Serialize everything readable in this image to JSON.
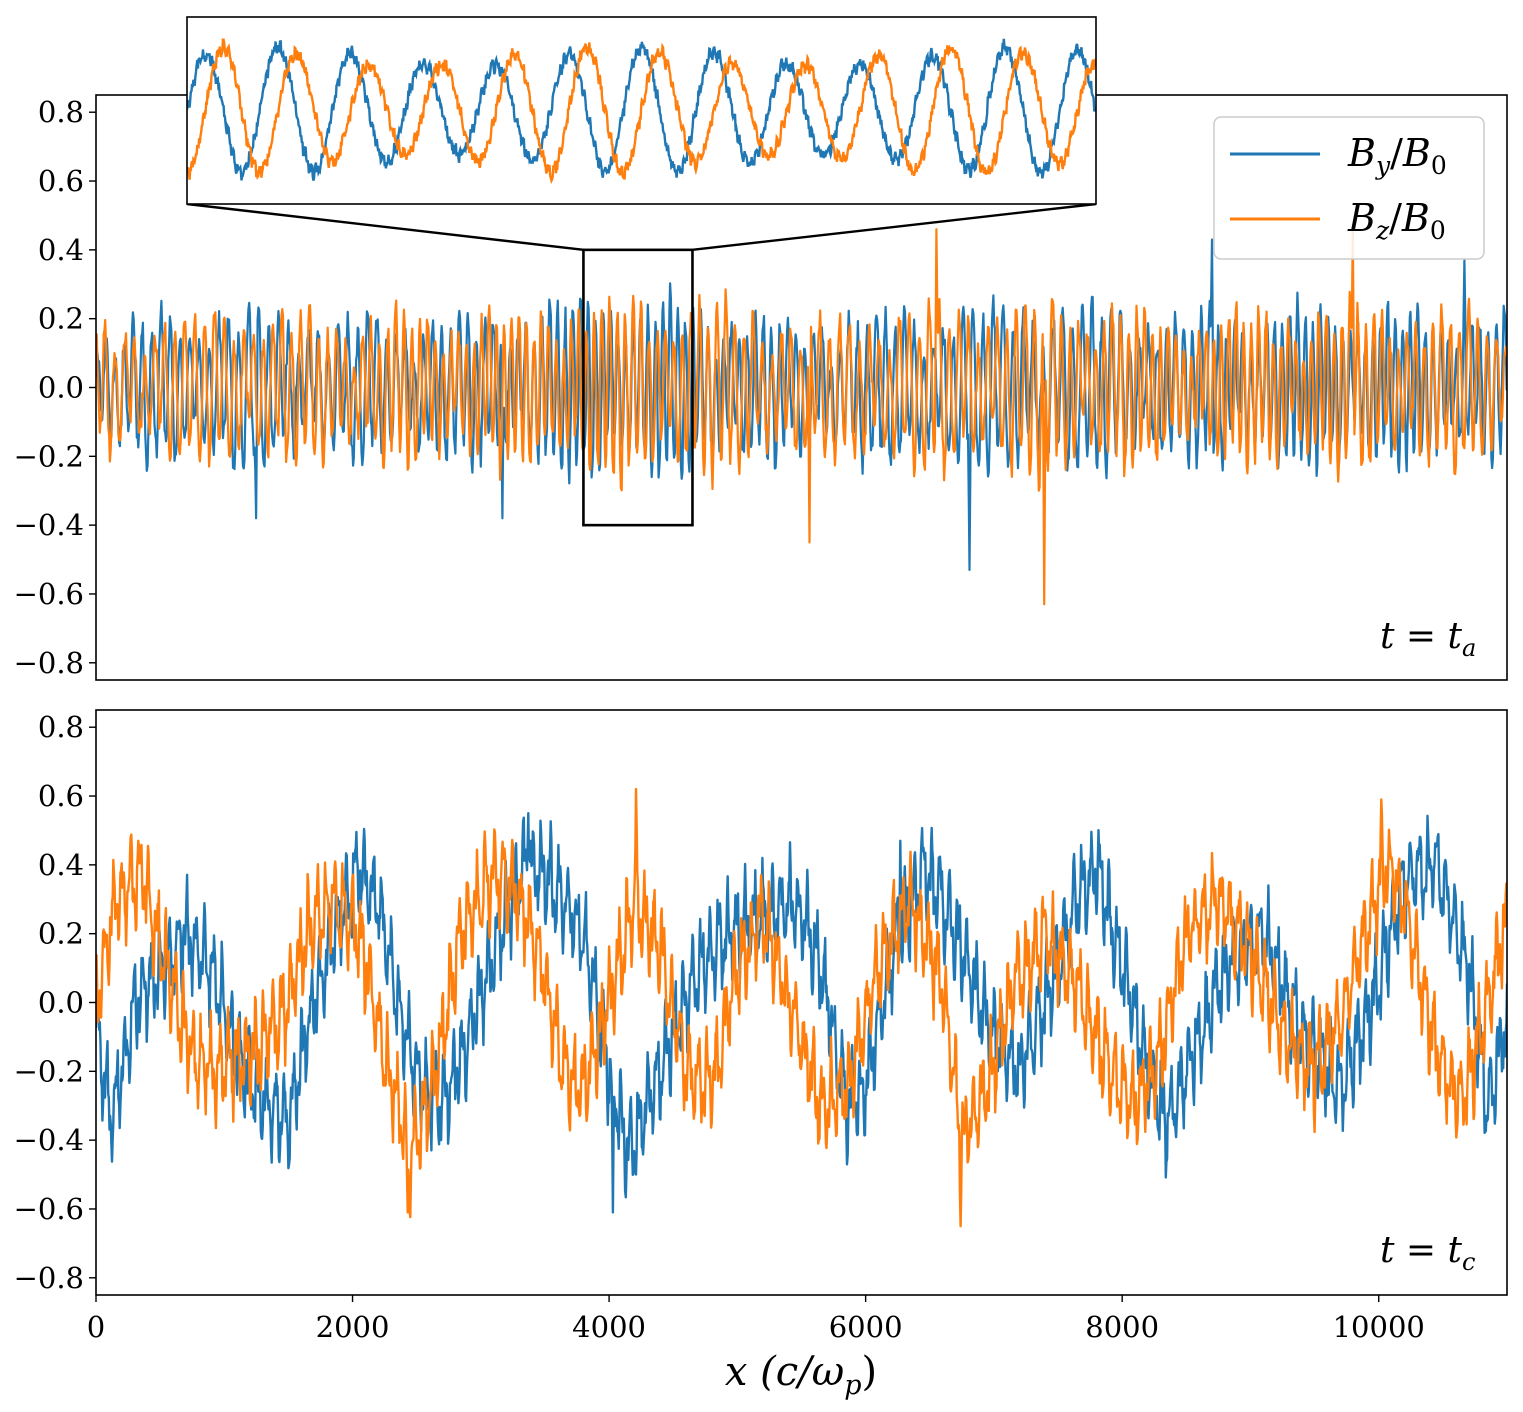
{
  "chart_data": [
    {
      "type": "line",
      "panel": "top",
      "annotation": "t = t_a",
      "time_label": {
        "lhs": "t",
        "sub": "a"
      },
      "xlim": [
        0,
        11000
      ],
      "ylim": [
        -0.85,
        0.85
      ],
      "yticks": [
        -0.8,
        -0.6,
        -0.4,
        -0.2,
        0.0,
        0.2,
        0.4,
        0.6,
        0.8
      ],
      "ytick_labels": [
        "−0.8",
        "−0.6",
        "−0.4",
        "−0.2",
        "0.0",
        "0.2",
        "0.4",
        "0.6",
        "0.8"
      ],
      "legend": {
        "position": "top-right",
        "entries": [
          {
            "series": "By/B0",
            "num": "B",
            "num_sub": "y",
            "den": "B",
            "den_sub": "0"
          },
          {
            "series": "Bz/B0",
            "num": "B",
            "num_sub": "z",
            "den": "B",
            "den_sub": "0"
          }
        ]
      },
      "series": [
        {
          "name": "By/B0",
          "color": "#1f77b4",
          "seed": 11,
          "shift": 0.0,
          "envelope": [
            [
              0,
              0.17
            ],
            [
              1000,
              0.22
            ],
            [
              2000,
              0.2
            ],
            [
              3000,
              0.19
            ],
            [
              3800,
              0.25
            ],
            [
              4600,
              0.24
            ],
            [
              5500,
              0.17
            ],
            [
              6500,
              0.22
            ],
            [
              7500,
              0.24
            ],
            [
              8500,
              0.2
            ],
            [
              9500,
              0.22
            ],
            [
              11000,
              0.2
            ]
          ]
        },
        {
          "name": "Bz/B0",
          "color": "#ff7f0e",
          "seed": 29,
          "shift": 0.25,
          "envelope": [
            [
              0,
              0.16
            ],
            [
              1000,
              0.22
            ],
            [
              2000,
              0.19
            ],
            [
              3000,
              0.2
            ],
            [
              3800,
              0.24
            ],
            [
              4600,
              0.25
            ],
            [
              5500,
              0.18
            ],
            [
              6500,
              0.22
            ],
            [
              7500,
              0.24
            ],
            [
              8500,
              0.19
            ],
            [
              9500,
              0.22
            ],
            [
              11000,
              0.2
            ]
          ]
        }
      ],
      "peaks": [
        {
          "series": "By/B0",
          "x": 6810,
          "y": -0.53
        },
        {
          "series": "By/B0",
          "x": 1250,
          "y": -0.38
        },
        {
          "series": "By/B0",
          "x": 3170,
          "y": -0.38
        },
        {
          "series": "By/B0",
          "x": 8700,
          "y": 0.43
        },
        {
          "series": "By/B0",
          "x": 10670,
          "y": 0.37
        },
        {
          "series": "Bz/B0",
          "x": 7390,
          "y": -0.63
        },
        {
          "series": "Bz/B0",
          "x": 5560,
          "y": -0.45
        },
        {
          "series": "Bz/B0",
          "x": 6550,
          "y": 0.46
        },
        {
          "series": "Bz/B0",
          "x": 9800,
          "y": 0.47
        }
      ],
      "zoom_box": {
        "x": [
          3800,
          4650
        ],
        "y": [
          -0.4,
          0.4
        ]
      },
      "inset": {
        "xlim": [
          3800,
          4650
        ],
        "ylim": [
          -0.4,
          0.4
        ],
        "wavelength": 68,
        "amplitude": 0.27,
        "phase_offset_turns": 0.25
      }
    },
    {
      "type": "line",
      "panel": "bottom",
      "annotation": "t = t_c",
      "time_label": {
        "lhs": "t",
        "sub": "c"
      },
      "xlim": [
        0,
        11000
      ],
      "ylim": [
        -0.85,
        0.85
      ],
      "xlabel": "x (c/ωp)",
      "xlabel_parts": {
        "var": "x",
        "open": "(c/ω",
        "sub": "p",
        "close": ")"
      },
      "xticks": [
        0,
        2000,
        4000,
        6000,
        8000,
        10000
      ],
      "xtick_labels": [
        "0",
        "2000",
        "4000",
        "6000",
        "8000",
        "10000"
      ],
      "yticks": [
        -0.8,
        -0.6,
        -0.4,
        -0.2,
        0.0,
        0.2,
        0.4,
        0.6,
        0.8
      ],
      "ytick_labels": [
        "−0.8",
        "−0.6",
        "−0.4",
        "−0.2",
        "0.0",
        "0.2",
        "0.4",
        "0.6",
        "0.8"
      ],
      "series": [
        {
          "name": "By/B0",
          "color": "#1f77b4",
          "seed": 5,
          "trend": [
            [
              0,
              -0.05
            ],
            [
              120,
              -0.35
            ],
            [
              300,
              0.0
            ],
            [
              500,
              0.1
            ],
            [
              700,
              0.2
            ],
            [
              900,
              0.1
            ],
            [
              1150,
              -0.2
            ],
            [
              1350,
              -0.3
            ],
            [
              1500,
              -0.35
            ],
            [
              1700,
              0.0
            ],
            [
              1900,
              0.25
            ],
            [
              2050,
              0.38
            ],
            [
              2200,
              0.3
            ],
            [
              2400,
              -0.1
            ],
            [
              2550,
              -0.25
            ],
            [
              2700,
              -0.3
            ],
            [
              2900,
              -0.1
            ],
            [
              3150,
              0.2
            ],
            [
              3350,
              0.42
            ],
            [
              3550,
              0.35
            ],
            [
              3800,
              0.2
            ],
            [
              4000,
              -0.2
            ],
            [
              4150,
              -0.45
            ],
            [
              4300,
              -0.3
            ],
            [
              4500,
              -0.1
            ],
            [
              4700,
              0.1
            ],
            [
              4950,
              0.2
            ],
            [
              5200,
              0.25
            ],
            [
              5450,
              0.3
            ],
            [
              5650,
              0.1
            ],
            [
              5850,
              -0.3
            ],
            [
              6000,
              -0.25
            ],
            [
              6250,
              0.2
            ],
            [
              6450,
              0.38
            ],
            [
              6600,
              0.3
            ],
            [
              6800,
              0.1
            ],
            [
              7000,
              -0.1
            ],
            [
              7200,
              -0.2
            ],
            [
              7450,
              0.05
            ],
            [
              7650,
              0.3
            ],
            [
              7800,
              0.4
            ],
            [
              8000,
              0.1
            ],
            [
              8200,
              -0.2
            ],
            [
              8350,
              -0.35
            ],
            [
              8500,
              -0.2
            ],
            [
              8800,
              0.1
            ],
            [
              9100,
              0.2
            ],
            [
              9400,
              -0.1
            ],
            [
              9700,
              -0.25
            ],
            [
              9950,
              0.0
            ],
            [
              10200,
              0.35
            ],
            [
              10450,
              0.4
            ],
            [
              10700,
              0.1
            ],
            [
              10850,
              -0.3
            ],
            [
              11000,
              -0.05
            ]
          ]
        },
        {
          "name": "Bz/B0",
          "color": "#ff7f0e",
          "seed": 17,
          "trend": [
            [
              0,
              0.0
            ],
            [
              150,
              0.3
            ],
            [
              350,
              0.38
            ],
            [
              550,
              0.1
            ],
            [
              750,
              -0.15
            ],
            [
              950,
              -0.2
            ],
            [
              1200,
              -0.15
            ],
            [
              1450,
              -0.05
            ],
            [
              1650,
              0.2
            ],
            [
              1850,
              0.3
            ],
            [
              2050,
              0.2
            ],
            [
              2250,
              -0.15
            ],
            [
              2450,
              -0.45
            ],
            [
              2650,
              -0.2
            ],
            [
              2850,
              0.2
            ],
            [
              3050,
              0.35
            ],
            [
              3250,
              0.35
            ],
            [
              3450,
              0.15
            ],
            [
              3650,
              -0.2
            ],
            [
              3800,
              -0.25
            ],
            [
              4000,
              0.0
            ],
            [
              4200,
              0.3
            ],
            [
              4400,
              0.15
            ],
            [
              4600,
              -0.2
            ],
            [
              4800,
              -0.25
            ],
            [
              5000,
              0.1
            ],
            [
              5200,
              0.25
            ],
            [
              5400,
              0.0
            ],
            [
              5650,
              -0.3
            ],
            [
              5850,
              -0.25
            ],
            [
              6100,
              0.1
            ],
            [
              6350,
              0.3
            ],
            [
              6600,
              0.05
            ],
            [
              6750,
              -0.4
            ],
            [
              6950,
              -0.25
            ],
            [
              7150,
              0.05
            ],
            [
              7400,
              0.2
            ],
            [
              7650,
              0.05
            ],
            [
              7850,
              -0.15
            ],
            [
              8100,
              -0.3
            ],
            [
              8300,
              -0.15
            ],
            [
              8500,
              0.2
            ],
            [
              8750,
              0.3
            ],
            [
              9000,
              0.15
            ],
            [
              9250,
              -0.1
            ],
            [
              9500,
              -0.2
            ],
            [
              9700,
              -0.05
            ],
            [
              9900,
              0.2
            ],
            [
              10050,
              0.4
            ],
            [
              10200,
              0.3
            ],
            [
              10450,
              -0.15
            ],
            [
              10650,
              -0.3
            ],
            [
              10850,
              0.0
            ],
            [
              11000,
              0.25
            ]
          ]
        }
      ],
      "peaks": [
        {
          "series": "By/B0",
          "x": 4030,
          "y": -0.61
        },
        {
          "series": "By/B0",
          "x": 3370,
          "y": 0.55
        },
        {
          "series": "By/B0",
          "x": 6270,
          "y": 0.47
        },
        {
          "series": "Bz/B0",
          "x": 6740,
          "y": -0.65
        },
        {
          "series": "Bz/B0",
          "x": 4210,
          "y": 0.62
        },
        {
          "series": "Bz/B0",
          "x": 10020,
          "y": 0.59
        },
        {
          "series": "Bz/B0",
          "x": 2430,
          "y": -0.61
        }
      ]
    }
  ]
}
